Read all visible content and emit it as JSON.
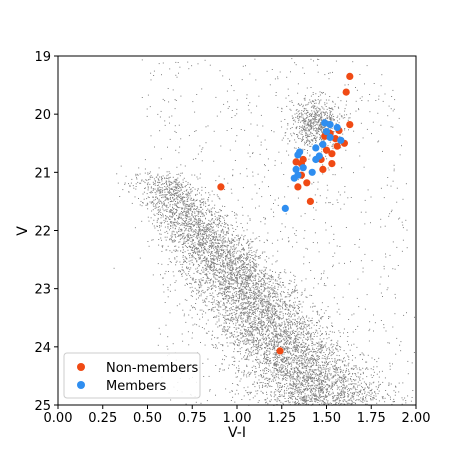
{
  "chart_data": {
    "type": "scatter",
    "xlabel": "V-I",
    "ylabel": "V",
    "xlim": [
      0.0,
      2.0
    ],
    "ylim": [
      25,
      19
    ],
    "y_inverted": true,
    "grid": false,
    "legend_placement": "bottom-left",
    "x_ticks": [
      "0.00",
      "0.25",
      "0.50",
      "0.75",
      "1.00",
      "1.25",
      "1.50",
      "1.75",
      "2.00"
    ],
    "y_ticks": [
      "19",
      "20",
      "21",
      "22",
      "23",
      "24",
      "25"
    ],
    "background_field": {
      "color": "#808080",
      "description_points": "dense field-star CMD: main-sequence band from (0.55,21.0) to (1.5,25.0) plus red clump near (1.45,20.1)"
    },
    "series": [
      {
        "name": "Non-members",
        "color": "#f04a14",
        "points": [
          [
            1.63,
            19.35
          ],
          [
            1.61,
            19.62
          ],
          [
            1.63,
            20.18
          ],
          [
            1.57,
            20.28
          ],
          [
            1.52,
            20.33
          ],
          [
            1.49,
            20.38
          ],
          [
            1.55,
            20.42
          ],
          [
            1.6,
            20.5
          ],
          [
            1.56,
            20.55
          ],
          [
            1.5,
            20.62
          ],
          [
            1.53,
            20.68
          ],
          [
            1.47,
            20.78
          ],
          [
            1.37,
            20.78
          ],
          [
            1.33,
            20.82
          ],
          [
            1.53,
            20.85
          ],
          [
            1.36,
            20.85
          ],
          [
            1.48,
            20.95
          ],
          [
            1.36,
            21.05
          ],
          [
            1.39,
            21.18
          ],
          [
            1.34,
            21.25
          ],
          [
            0.91,
            21.25
          ],
          [
            1.41,
            21.5
          ],
          [
            1.24,
            24.07
          ]
        ]
      },
      {
        "name": "Members",
        "color": "#2f8ef0",
        "points": [
          [
            1.49,
            20.15
          ],
          [
            1.52,
            20.18
          ],
          [
            1.56,
            20.23
          ],
          [
            1.5,
            20.3
          ],
          [
            1.52,
            20.4
          ],
          [
            1.58,
            20.45
          ],
          [
            1.48,
            20.52
          ],
          [
            1.44,
            20.58
          ],
          [
            1.35,
            20.65
          ],
          [
            1.34,
            20.7
          ],
          [
            1.46,
            20.72
          ],
          [
            1.44,
            20.78
          ],
          [
            1.37,
            20.92
          ],
          [
            1.33,
            20.95
          ],
          [
            1.42,
            21.0
          ],
          [
            1.34,
            21.05
          ],
          [
            1.32,
            21.1
          ],
          [
            1.27,
            21.62
          ]
        ]
      }
    ]
  }
}
